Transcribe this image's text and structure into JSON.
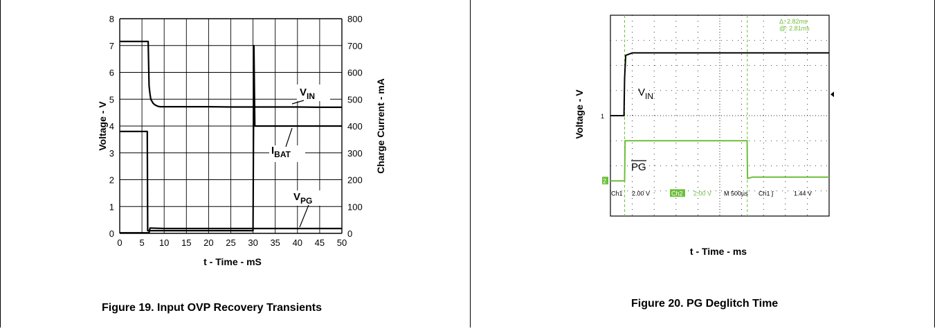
{
  "figures": [
    {
      "caption": "Figure 19. Input OVP Recovery Transients"
    },
    {
      "caption": "Figure 20. PG Deglitch Time"
    }
  ],
  "chart_data": [
    {
      "type": "line",
      "title": "",
      "xlabel": "t - Time - mS",
      "ylabel": "Voltage - V",
      "y2label": "Charge Current - mA",
      "xlim": [
        0,
        50
      ],
      "ylim": [
        0,
        8
      ],
      "y2lim": [
        0,
        800
      ],
      "xticks": [
        "0",
        "5",
        "10",
        "15",
        "20",
        "25",
        "30",
        "35",
        "40",
        "45",
        "50"
      ],
      "yticks": [
        "0",
        "1",
        "2",
        "3",
        "4",
        "5",
        "6",
        "7",
        "8"
      ],
      "y2ticks": [
        "0",
        "100",
        "200",
        "300",
        "400",
        "500",
        "600",
        "700",
        "800"
      ],
      "grid": true,
      "annotations": [
        {
          "label": "V",
          "sub": "IN"
        },
        {
          "label": "I",
          "sub": "BAT"
        },
        {
          "label": "V",
          "sub": "PG"
        }
      ],
      "series": [
        {
          "name": "V_IN",
          "axis": "left",
          "x": [
            0,
            5,
            6.4,
            6.6,
            6.8,
            7,
            7.5,
            8,
            8.5,
            9,
            10,
            15,
            20,
            25,
            30,
            35,
            40,
            45,
            50
          ],
          "y": [
            7.15,
            7.15,
            7.15,
            5.5,
            5.2,
            5.0,
            4.85,
            4.78,
            4.74,
            4.72,
            4.72,
            4.72,
            4.72,
            4.71,
            4.71,
            4.71,
            4.71,
            4.7,
            4.7
          ]
        },
        {
          "name": "I_BAT",
          "axis": "right",
          "x": [
            0,
            6.2,
            6.3,
            6.5,
            30,
            30.2,
            30.4,
            30.8,
            31,
            35,
            40,
            45,
            50
          ],
          "y": [
            380,
            380,
            10,
            10,
            10,
            700,
            400,
            400,
            400,
            400,
            400,
            400,
            400
          ]
        },
        {
          "name": "V_PG",
          "axis": "left",
          "x": [
            0,
            6.6,
            6.8,
            10,
            20,
            30,
            40,
            50
          ],
          "y": [
            0.02,
            0.02,
            0.2,
            0.18,
            0.18,
            0.18,
            0.18,
            0.18
          ]
        }
      ]
    },
    {
      "type": "line",
      "title": "",
      "xlabel": "t - Time - ms",
      "ylabel": "Voltage - V",
      "cursor_readout": [
        "Δ: 2.82ms",
        "@: 2.81ms"
      ],
      "scope_status": [
        "Ch1",
        "2.00 V",
        "Ch2",
        "2.00 V",
        "M 500µs",
        "Ch1 ∫",
        "1.44 V"
      ],
      "ch1_marker": "1",
      "ch2_marker": "2",
      "grid": true,
      "annotations": [
        {
          "label": "V",
          "sub": "IN"
        },
        {
          "label": "PG",
          "overline": true
        }
      ],
      "colors": {
        "ch1": "#000000",
        "ch2": "#6dbf3a",
        "grid": "#000000"
      },
      "series": [
        {
          "name": "V_IN",
          "channel": "Ch1",
          "x_div": [
            0,
            0.62,
            0.65,
            0.7,
            1.0,
            10
          ],
          "y_div": [
            0,
            0,
            1.5,
            2.4,
            2.5,
            2.5
          ]
        },
        {
          "name": "PG",
          "channel": "Ch2",
          "x_div": [
            0,
            0.65,
            0.67,
            6.25,
            6.27,
            6.5,
            10
          ],
          "y_div": [
            -2.6,
            -2.6,
            -1.0,
            -1.0,
            -2.5,
            -2.45,
            -2.45
          ]
        }
      ]
    }
  ]
}
